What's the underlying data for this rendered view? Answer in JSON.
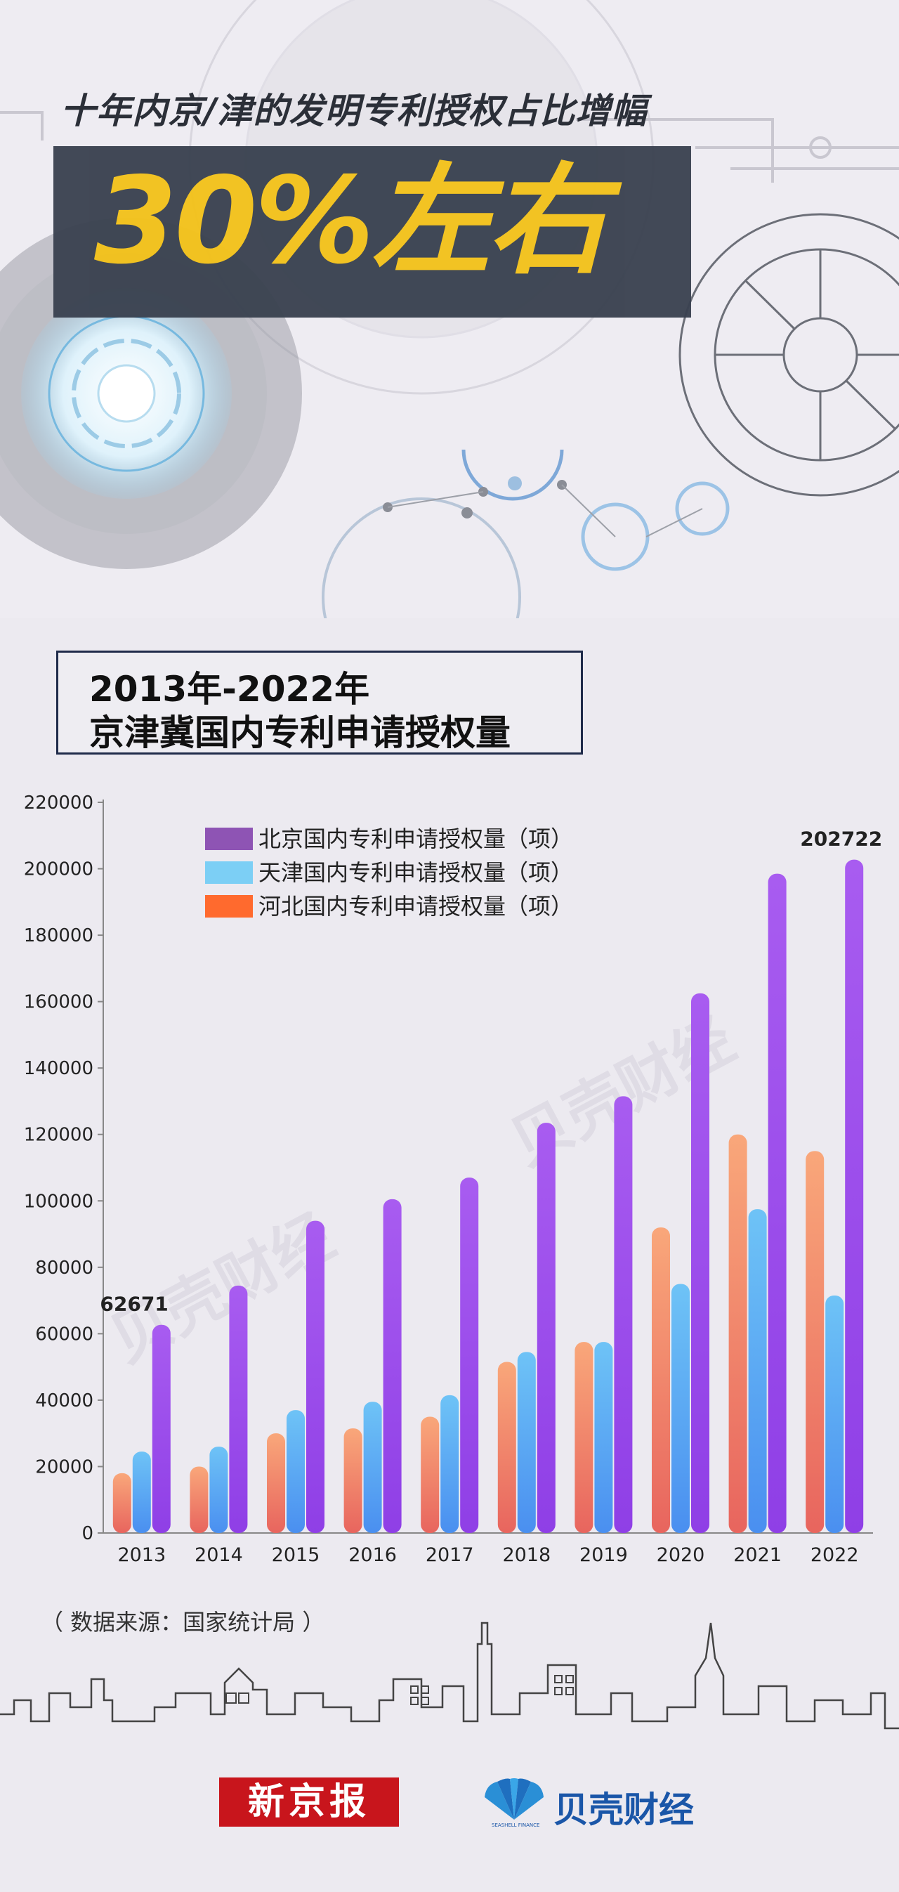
{
  "header": {
    "headline": "十年内京/津的发明专利授权占比增幅",
    "banner": "30%左右"
  },
  "chart_title": {
    "line1": "2013年-2022年",
    "line2": "京津冀国内专利申请授权量"
  },
  "chart_data": {
    "type": "bar",
    "categories": [
      "2013",
      "2014",
      "2015",
      "2016",
      "2017",
      "2018",
      "2019",
      "2020",
      "2021",
      "2022"
    ],
    "series": [
      {
        "name": "河北国内专利申请授权量（项）",
        "color": "#ff6a2e",
        "values": [
          18000,
          20000,
          30000,
          31500,
          35000,
          51500,
          57500,
          92000,
          120000,
          115000
        ]
      },
      {
        "name": "天津国内专利申请授权量（项）",
        "color": "#7ccff5",
        "values": [
          24500,
          26000,
          37000,
          39500,
          41500,
          54500,
          57500,
          75000,
          97500,
          71500
        ]
      },
      {
        "name": "北京国内专利申请授权量（项）",
        "color": "#8e54b4",
        "values": [
          62671,
          74500,
          94000,
          100500,
          107000,
          123500,
          131500,
          162500,
          198500,
          202722
        ]
      }
    ],
    "legend_order": [
      2,
      1,
      0
    ],
    "y_ticks": [
      "0",
      "20000",
      "40000",
      "60000",
      "80000",
      "100000",
      "120000",
      "140000",
      "160000",
      "180000",
      "200000",
      "220000"
    ],
    "ylim": [
      0,
      220000
    ],
    "annotations": [
      {
        "label": "62671",
        "category": "2013",
        "series": 2
      },
      {
        "label": "202722",
        "category": "2022",
        "series": 2
      }
    ],
    "legend_position": "top-left",
    "grid": false
  },
  "watermark": "贝壳财经",
  "source": "（ 数据来源：国家统计局 ）",
  "footer": {
    "logo_left": "新京报",
    "logo_right": "贝壳财经",
    "logo_right_sub": "SEASHELL FINANCE"
  }
}
